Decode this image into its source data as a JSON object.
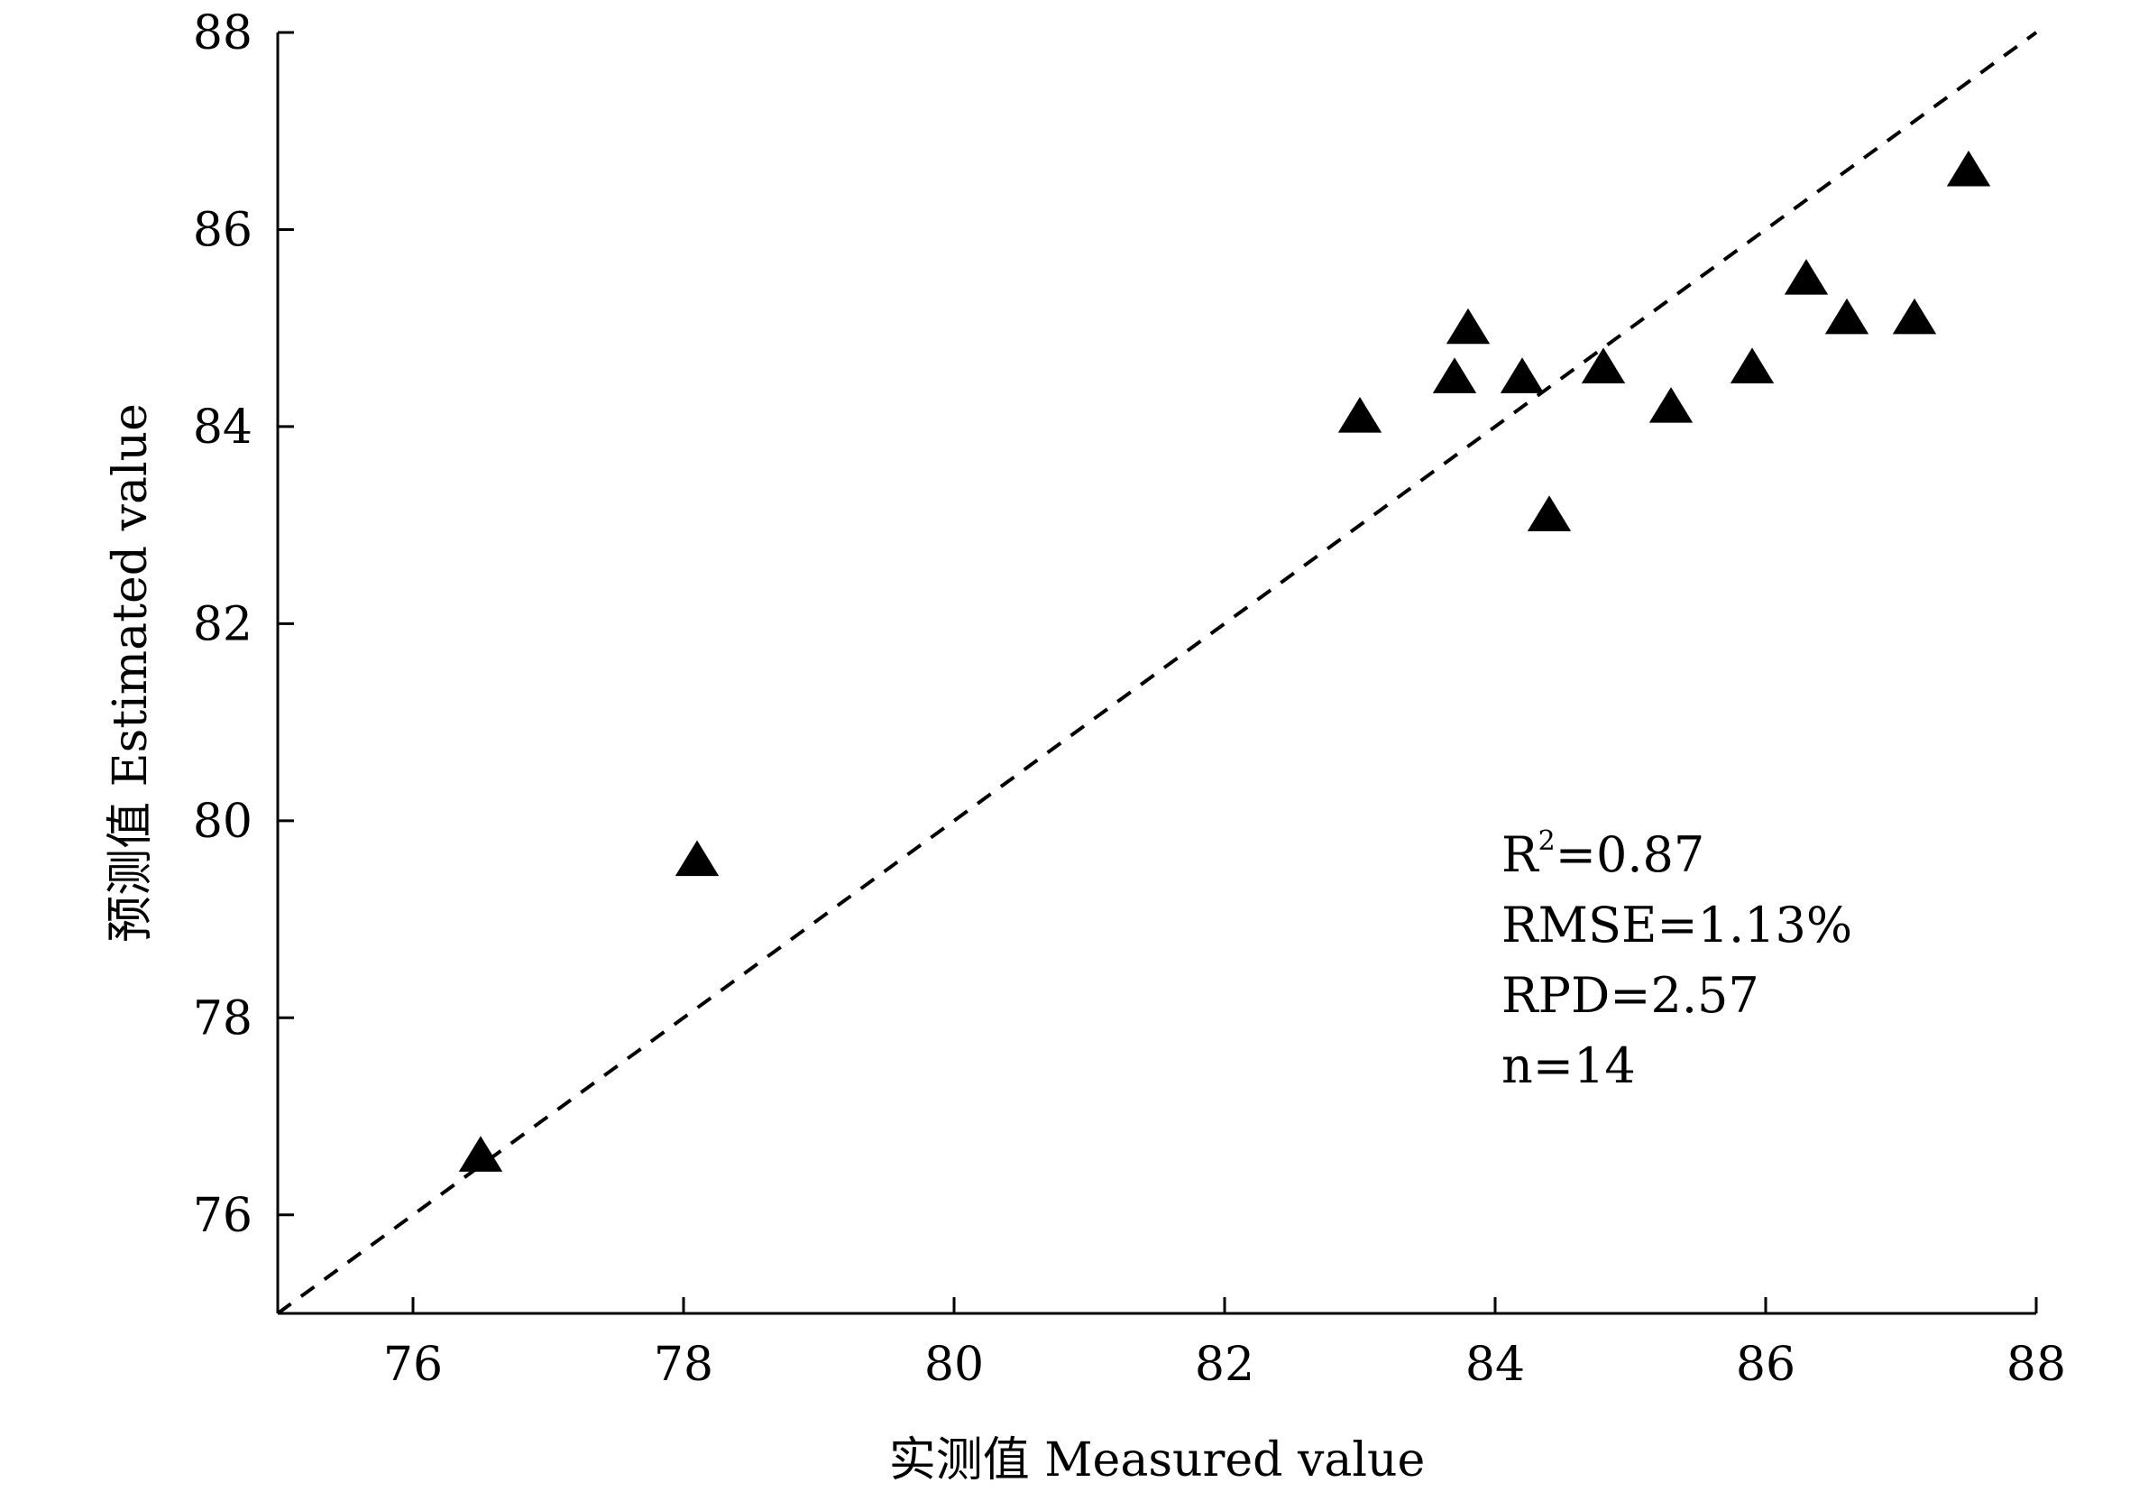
{
  "chart_data": {
    "type": "scatter",
    "xlabel": "实测值 Measured value",
    "ylabel": "预测值 Estimated value",
    "xlim": [
      75,
      88
    ],
    "ylim": [
      75,
      88
    ],
    "xticks": [
      76,
      78,
      80,
      82,
      84,
      86,
      88
    ],
    "yticks": [
      76,
      78,
      80,
      82,
      84,
      86,
      88
    ],
    "grid": false,
    "marker": "triangle",
    "marker_color": "#000000",
    "reference_line": {
      "style": "dashed",
      "slope": 1,
      "intercept": 0
    },
    "points": [
      {
        "x": 76.5,
        "y": 76.6
      },
      {
        "x": 78.1,
        "y": 79.6
      },
      {
        "x": 83.0,
        "y": 84.1
      },
      {
        "x": 83.7,
        "y": 84.5
      },
      {
        "x": 83.8,
        "y": 85.0
      },
      {
        "x": 84.2,
        "y": 84.5
      },
      {
        "x": 84.4,
        "y": 83.1
      },
      {
        "x": 84.8,
        "y": 84.6
      },
      {
        "x": 85.3,
        "y": 84.2
      },
      {
        "x": 85.9,
        "y": 84.6
      },
      {
        "x": 86.3,
        "y": 85.5
      },
      {
        "x": 86.6,
        "y": 85.1
      },
      {
        "x": 87.1,
        "y": 85.1
      },
      {
        "x": 87.5,
        "y": 86.6
      }
    ],
    "annotations": {
      "r2_prefix": "R",
      "r2_sup": "2",
      "r2_value": "=0.87",
      "rmse": "RMSE=1.13%",
      "rpd": "RPD=2.57",
      "n": "n=14"
    }
  }
}
